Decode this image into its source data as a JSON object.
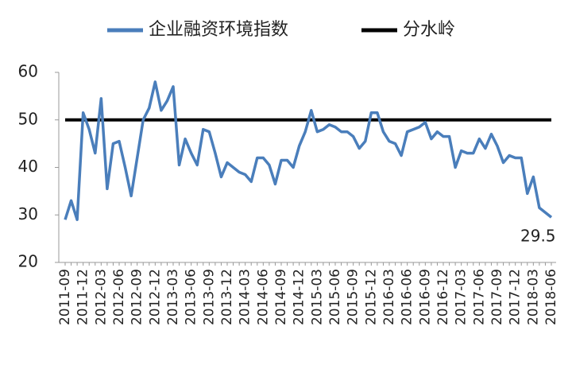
{
  "chart_data": {
    "type": "line",
    "categories": [
      "2011-09",
      null,
      null,
      "2011-12",
      null,
      null,
      "2012-03",
      null,
      null,
      "2012-06",
      null,
      null,
      "2012-09",
      null,
      null,
      "2012-12",
      null,
      null,
      "2013-03",
      null,
      null,
      "2013-06",
      null,
      null,
      "2013-09",
      null,
      null,
      "2013-12",
      null,
      null,
      "2014-03",
      null,
      null,
      "2014-06",
      null,
      null,
      "2014-09",
      null,
      null,
      "2014-12",
      null,
      null,
      "2015-03",
      null,
      null,
      "2015-06",
      null,
      null,
      "2015-09",
      null,
      null,
      "2015-12",
      null,
      null,
      "2016-03",
      null,
      null,
      "2016-06",
      null,
      null,
      "2016-09",
      null,
      null,
      "2016-12",
      null,
      null,
      "2017-03",
      null,
      null,
      "2017-06",
      null,
      null,
      "2017-09",
      null,
      null,
      "2017-12",
      null,
      null,
      "2018-03",
      null,
      null,
      "2018-06"
    ],
    "series": [
      {
        "name": "企业融资环境指数",
        "color": "#4a7ebb",
        "values": [
          29,
          33,
          29,
          51.5,
          48,
          43,
          54.5,
          35.5,
          45,
          45.5,
          40,
          34,
          42,
          50,
          52.5,
          58,
          52,
          54,
          57,
          40.5,
          46,
          43,
          40.5,
          48,
          47.5,
          43,
          38,
          41,
          40,
          39,
          38.5,
          37,
          42,
          42,
          40.5,
          36.5,
          41.5,
          41.5,
          40,
          44.5,
          47.5,
          52,
          47.5,
          48,
          49,
          48.5,
          47.5,
          47.5,
          46.5,
          44,
          45.5,
          51.5,
          51.5,
          47.5,
          45.5,
          45,
          42.5,
          47.5,
          48,
          48.5,
          49.5,
          46,
          47.5,
          46.5,
          46.5,
          40,
          43.5,
          43,
          43,
          46,
          44,
          47,
          44.5,
          41,
          42.5,
          42,
          42,
          34.5,
          38,
          31.5,
          30.5,
          29.5
        ]
      },
      {
        "name": "分水岭",
        "color": "#000000",
        "values": [
          50,
          50,
          50,
          50,
          50,
          50,
          50,
          50,
          50,
          50,
          50,
          50,
          50,
          50,
          50,
          50,
          50,
          50,
          50,
          50,
          50,
          50,
          50,
          50,
          50,
          50,
          50,
          50,
          50,
          50,
          50,
          50,
          50,
          50,
          50,
          50,
          50,
          50,
          50,
          50,
          50,
          50,
          50,
          50,
          50,
          50,
          50,
          50,
          50,
          50,
          50,
          50,
          50,
          50,
          50,
          50,
          50,
          50,
          50,
          50,
          50,
          50,
          50,
          50,
          50,
          50,
          50,
          50,
          50,
          50,
          50,
          50,
          50,
          50,
          50,
          50,
          50,
          50,
          50,
          50,
          50,
          50
        ]
      }
    ],
    "ylim": [
      20,
      60
    ],
    "yticks": [
      20,
      30,
      40,
      50,
      60
    ],
    "annotation": "29.5",
    "annotation_color": "#c00000"
  }
}
